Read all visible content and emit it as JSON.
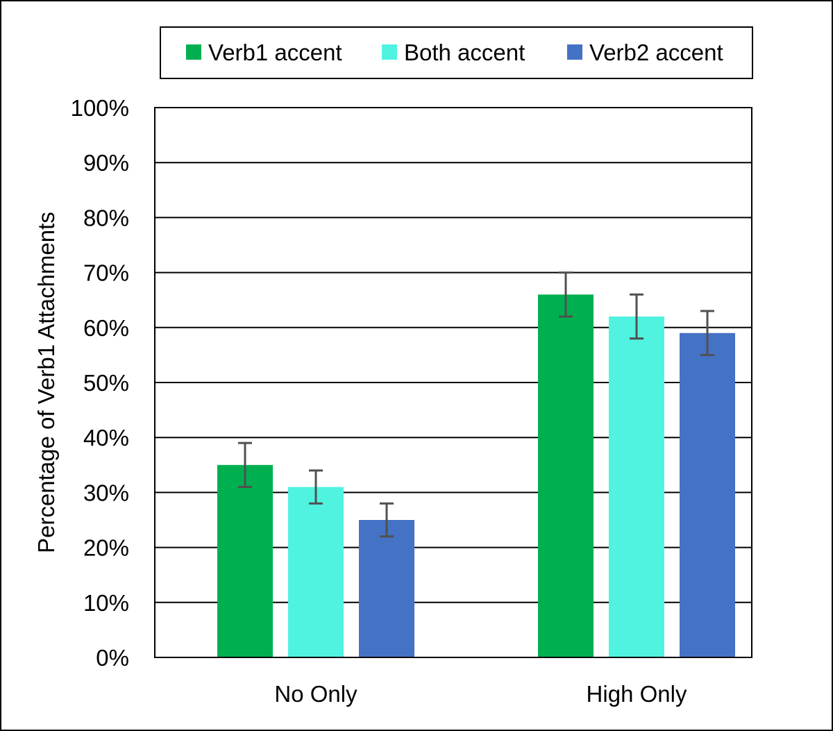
{
  "chart_data": {
    "type": "bar",
    "title": "",
    "xlabel": "",
    "ylabel": "Percentage of Verb1 Attachments",
    "ylim": [
      0,
      100
    ],
    "yticks": [
      "0%",
      "10%",
      "20%",
      "30%",
      "40%",
      "50%",
      "60%",
      "70%",
      "80%",
      "90%",
      "100%"
    ],
    "grid": true,
    "legend_position": "top",
    "categories": [
      "No Only",
      "High Only"
    ],
    "series": [
      {
        "name": "Verb1 accent",
        "color": "#00b050",
        "values": [
          35,
          66
        ],
        "error_low": [
          31,
          62
        ],
        "error_high": [
          39,
          70
        ]
      },
      {
        "name": "Both accent",
        "color": "#4ff3e0",
        "values": [
          31,
          62
        ],
        "error_low": [
          28,
          58
        ],
        "error_high": [
          34,
          66
        ]
      },
      {
        "name": "Verb2 accent",
        "color": "#4472c4",
        "values": [
          25,
          59
        ],
        "error_low": [
          22,
          55
        ],
        "error_high": [
          28,
          63
        ]
      }
    ],
    "error_bar_color": "#505050"
  }
}
